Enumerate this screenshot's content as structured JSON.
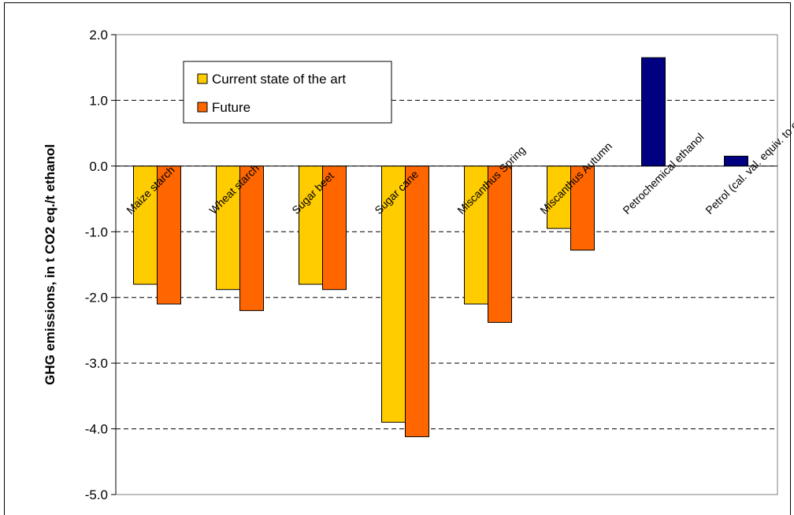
{
  "chart_data": {
    "type": "bar",
    "title": "",
    "xlabel": "",
    "ylabel": "GHG emissions, in t CO2 eq./t ethanol",
    "ylim": [
      -5.0,
      2.0
    ],
    "yticks": [
      "2.0",
      "1.0",
      "0.0",
      "-1.0",
      "-2.0",
      "-3.0",
      "-4.0",
      "-5.0"
    ],
    "grid": "horizontal dashed",
    "legend_placement": "top-left",
    "categories": [
      "Maize starch",
      "Wheat starch",
      "Sugar beet",
      "Sugar cane",
      "Miscanthus Spring",
      "Miscanthus Autumn",
      "Petrochemical ethanol",
      "Petrol (cal. val. equiv. to ethanol)"
    ],
    "series": [
      {
        "name": "Current state of the art",
        "color": "#FFCC00",
        "values": [
          -1.8,
          -1.88,
          -1.8,
          -3.9,
          -2.1,
          -0.95,
          null,
          null
        ]
      },
      {
        "name": "Future",
        "color": "#FF6600",
        "values": [
          -2.1,
          -2.2,
          -1.88,
          -4.12,
          -2.38,
          -1.28,
          null,
          null
        ]
      },
      {
        "name": "",
        "color": "#000080",
        "values": [
          null,
          null,
          null,
          null,
          null,
          null,
          1.65,
          0.15
        ]
      }
    ]
  }
}
